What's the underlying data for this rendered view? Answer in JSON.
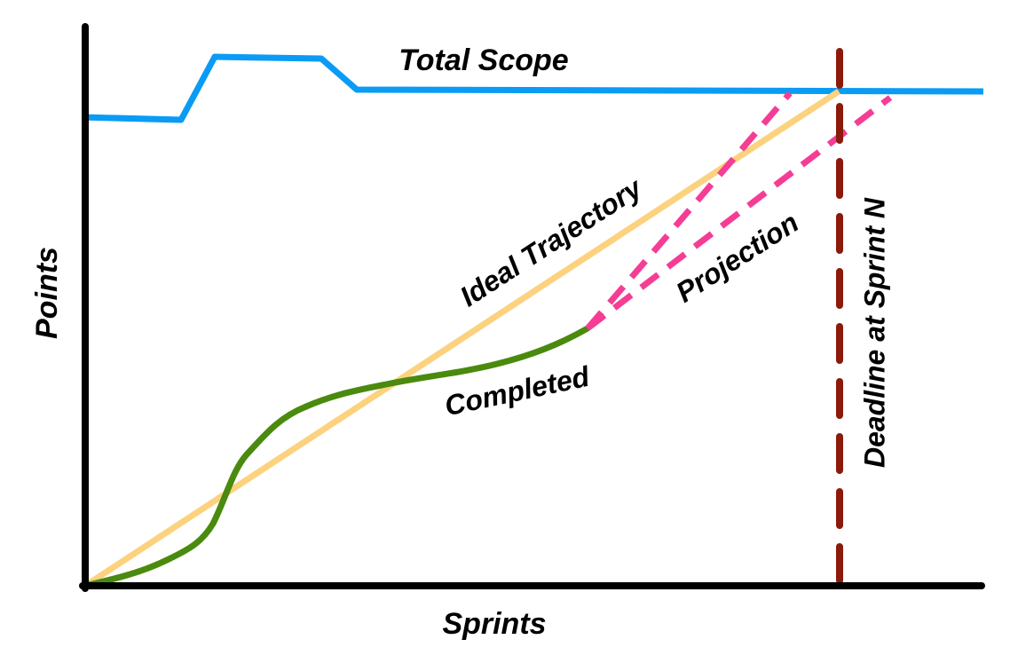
{
  "axes": {
    "x_label": "Sprints",
    "y_label": "Points"
  },
  "annotations": {
    "total_scope": "Total Scope",
    "ideal": "Ideal Trajectory",
    "projection": "Projection",
    "completed": "Completed",
    "deadline": "Deadline at Sprint N"
  }
}
